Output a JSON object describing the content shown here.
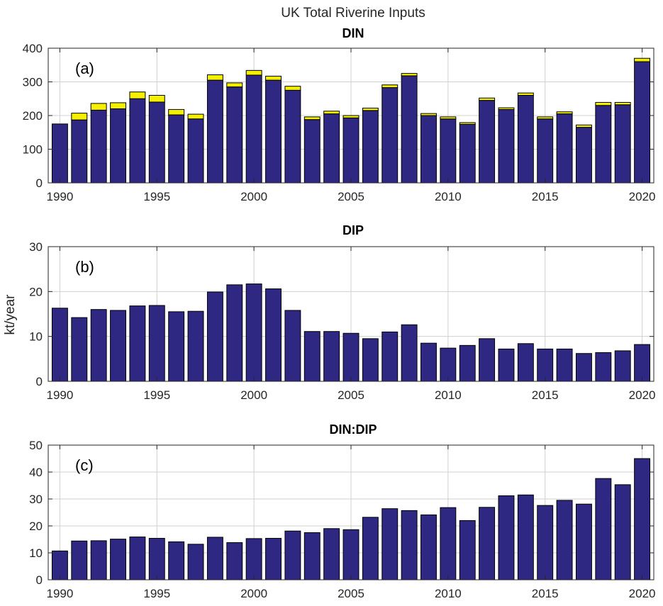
{
  "figure": {
    "title": "UK Total Riverine Inputs",
    "ylabel": "kt/year"
  },
  "colors": {
    "bar_fill": "#2e2882",
    "bar_stroke": "#000000",
    "top_fill": "#f5f000",
    "grid": "#d0d0d0",
    "axis": "#262626",
    "background": "#ffffff"
  },
  "chart_data": [
    {
      "type": "bar",
      "panel_label": "(a)",
      "title": "DIN",
      "stacked": true,
      "x": [
        1990,
        1991,
        1992,
        1993,
        1994,
        1995,
        1996,
        1997,
        1998,
        1999,
        2000,
        2001,
        2002,
        2003,
        2004,
        2005,
        2006,
        2007,
        2008,
        2009,
        2010,
        2011,
        2012,
        2013,
        2014,
        2015,
        2016,
        2017,
        2018,
        2019,
        2020
      ],
      "series": [
        {
          "name": "base",
          "color": "#2e2882",
          "values": [
            175,
            187,
            216,
            220,
            250,
            240,
            202,
            190,
            305,
            285,
            320,
            305,
            275,
            188,
            205,
            193,
            215,
            283,
            318,
            200,
            190,
            174,
            245,
            218,
            260,
            190,
            205,
            165,
            230,
            232,
            360
          ]
        },
        {
          "name": "top",
          "color": "#f5f000",
          "values": [
            0,
            20,
            20,
            18,
            20,
            20,
            16,
            14,
            16,
            12,
            14,
            12,
            12,
            8,
            8,
            7,
            7,
            8,
            7,
            6,
            6,
            5,
            7,
            5,
            7,
            6,
            6,
            7,
            9,
            7,
            10
          ]
        }
      ],
      "ylim": [
        0,
        400
      ],
      "yticks": [
        0,
        100,
        200,
        300,
        400
      ],
      "xticks": [
        1990,
        1995,
        2000,
        2005,
        2010,
        2015,
        2020
      ],
      "grid": true
    },
    {
      "type": "bar",
      "panel_label": "(b)",
      "title": "DIP",
      "x": [
        1990,
        1991,
        1992,
        1993,
        1994,
        1995,
        1996,
        1997,
        1998,
        1999,
        2000,
        2001,
        2002,
        2003,
        2004,
        2005,
        2006,
        2007,
        2008,
        2009,
        2010,
        2011,
        2012,
        2013,
        2014,
        2015,
        2016,
        2017,
        2018,
        2019,
        2020
      ],
      "values": [
        16.3,
        14.2,
        16.0,
        15.8,
        16.8,
        16.9,
        15.5,
        15.6,
        19.9,
        21.5,
        21.7,
        20.6,
        15.8,
        11.1,
        11.1,
        10.7,
        9.5,
        11.0,
        12.6,
        8.5,
        7.4,
        8.0,
        9.5,
        7.2,
        8.4,
        7.2,
        7.2,
        6.2,
        6.4,
        6.8,
        8.2
      ],
      "ylim": [
        0,
        30
      ],
      "yticks": [
        0,
        10,
        20,
        30
      ],
      "xticks": [
        1990,
        1995,
        2000,
        2005,
        2010,
        2015,
        2020
      ],
      "grid": true
    },
    {
      "type": "bar",
      "panel_label": "(c)",
      "title": "DIN:DIP",
      "x": [
        1990,
        1991,
        1992,
        1993,
        1994,
        1995,
        1996,
        1997,
        1998,
        1999,
        2000,
        2001,
        2002,
        2003,
        2004,
        2005,
        2006,
        2007,
        2008,
        2009,
        2010,
        2011,
        2012,
        2013,
        2014,
        2015,
        2016,
        2017,
        2018,
        2019,
        2020
      ],
      "values": [
        10.7,
        14.4,
        14.5,
        15.1,
        15.9,
        15.4,
        14.1,
        13.2,
        15.8,
        13.8,
        15.3,
        15.4,
        18.1,
        17.5,
        19.0,
        18.6,
        23.2,
        26.4,
        25.7,
        24.1,
        26.8,
        22.0,
        26.9,
        31.2,
        31.5,
        27.6,
        29.5,
        28.1,
        37.6,
        35.3,
        45.0
      ],
      "ylim": [
        0,
        50
      ],
      "yticks": [
        0,
        10,
        20,
        30,
        40,
        50
      ],
      "xticks": [
        1990,
        1995,
        2000,
        2005,
        2010,
        2015,
        2020
      ],
      "grid": true
    }
  ]
}
